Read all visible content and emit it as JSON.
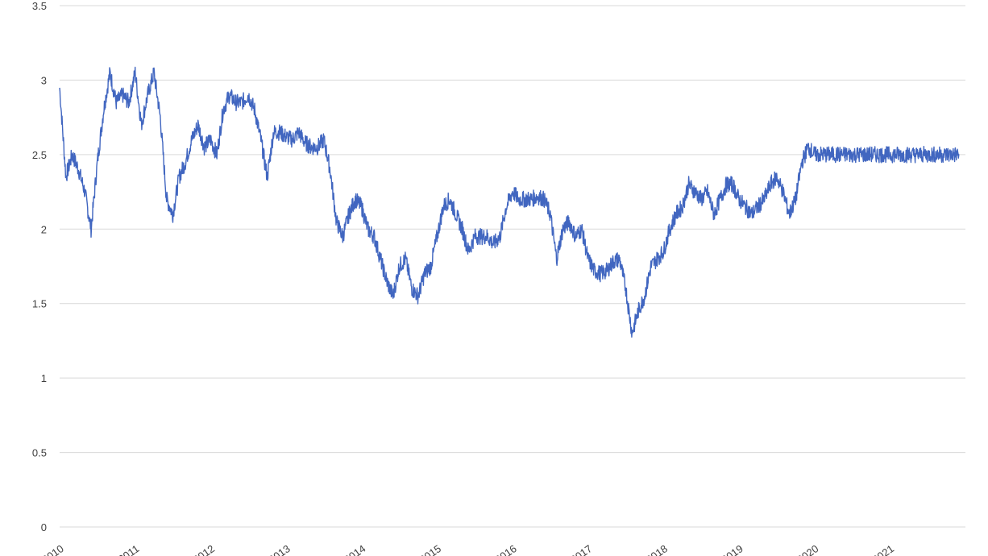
{
  "chart_data": {
    "type": "line",
    "title": "",
    "xlabel": "",
    "ylabel": "",
    "ylim": [
      0,
      3.5
    ],
    "xlim": [
      "2010-01",
      "2022-01"
    ],
    "grid": "horizontal",
    "legend": "none",
    "color": "#4166c0",
    "y_ticks": [
      "0",
      "0.5",
      "1",
      "1.5",
      "2",
      "2.5",
      "3",
      "3.5"
    ],
    "x_ticks": [
      "2010",
      "2011",
      "2012",
      "2013",
      "2014",
      "2015",
      "2016",
      "2017",
      "2018",
      "2019",
      "2020",
      "2021"
    ],
    "x": [
      "2010-01",
      "2010-02",
      "2010-03",
      "2010-04",
      "2010-05",
      "2010-06",
      "2010-07",
      "2010-08",
      "2010-09",
      "2010-10",
      "2010-11",
      "2010-12",
      "2011-01",
      "2011-02",
      "2011-03",
      "2011-04",
      "2011-05",
      "2011-06",
      "2011-07",
      "2011-08",
      "2011-09",
      "2011-10",
      "2011-11",
      "2011-12",
      "2012-01",
      "2012-02",
      "2012-03",
      "2012-04",
      "2012-05",
      "2012-06",
      "2012-07",
      "2012-08",
      "2012-09",
      "2012-10",
      "2012-11",
      "2012-12",
      "2013-01",
      "2013-02",
      "2013-03",
      "2013-04",
      "2013-05",
      "2013-06",
      "2013-07",
      "2013-08",
      "2013-09",
      "2013-10",
      "2013-11",
      "2013-12",
      "2014-01",
      "2014-02",
      "2014-03",
      "2014-04",
      "2014-05",
      "2014-06",
      "2014-07",
      "2014-08",
      "2014-09",
      "2014-10",
      "2014-11",
      "2014-12",
      "2015-01",
      "2015-02",
      "2015-03",
      "2015-04",
      "2015-05",
      "2015-06",
      "2015-07",
      "2015-08",
      "2015-09",
      "2015-10",
      "2015-11",
      "2015-12",
      "2016-01",
      "2016-02",
      "2016-03",
      "2016-04",
      "2016-05",
      "2016-06",
      "2016-07",
      "2016-08",
      "2016-09",
      "2016-10",
      "2016-11",
      "2016-12",
      "2017-01",
      "2017-02",
      "2017-03",
      "2017-04",
      "2017-05",
      "2017-06",
      "2017-07",
      "2017-08",
      "2017-09",
      "2017-10",
      "2017-11",
      "2017-12",
      "2018-01",
      "2018-02",
      "2018-03",
      "2018-04",
      "2018-05",
      "2018-06",
      "2018-07",
      "2018-08",
      "2018-09",
      "2018-10",
      "2018-11",
      "2018-12",
      "2019-01",
      "2019-02",
      "2019-03",
      "2019-04",
      "2019-05",
      "2019-06",
      "2019-07",
      "2019-08",
      "2019-09",
      "2019-10",
      "2019-11",
      "2019-12",
      "2020-01",
      "2020-02",
      "2020-03",
      "2020-04",
      "2020-05",
      "2020-06",
      "2020-07",
      "2020-08",
      "2020-09",
      "2020-10",
      "2020-11",
      "2020-12",
      "2021-01",
      "2021-02",
      "2021-03",
      "2021-04",
      "2021-05",
      "2021-06",
      "2021-07",
      "2021-08",
      "2021-09",
      "2021-10",
      "2021-11",
      "2021-12"
    ],
    "series": [
      {
        "values": [
          2.95,
          2.35,
          2.5,
          2.4,
          2.25,
          2.0,
          2.45,
          2.8,
          3.05,
          2.85,
          2.9,
          2.85,
          3.05,
          2.7,
          2.9,
          3.05,
          2.75,
          2.2,
          2.1,
          2.35,
          2.45,
          2.6,
          2.7,
          2.55,
          2.6,
          2.5,
          2.8,
          2.9,
          2.85,
          2.85,
          2.9,
          2.8,
          2.6,
          2.35,
          2.65,
          2.65,
          2.62,
          2.6,
          2.65,
          2.58,
          2.55,
          2.55,
          2.6,
          2.4,
          2.05,
          1.95,
          2.1,
          2.2,
          2.15,
          2.0,
          1.95,
          1.8,
          1.65,
          1.55,
          1.75,
          1.8,
          1.6,
          1.55,
          1.7,
          1.75,
          1.95,
          2.15,
          2.2,
          2.1,
          2.0,
          1.85,
          1.95,
          1.95,
          1.95,
          1.9,
          1.95,
          2.15,
          2.25,
          2.2,
          2.2,
          2.2,
          2.22,
          2.2,
          2.1,
          1.8,
          2.0,
          2.05,
          1.95,
          2.0,
          1.8,
          1.72,
          1.7,
          1.72,
          1.78,
          1.8,
          1.6,
          1.3,
          1.45,
          1.55,
          1.75,
          1.8,
          1.85,
          2.0,
          2.1,
          2.15,
          2.3,
          2.25,
          2.2,
          2.25,
          2.1,
          2.2,
          2.3,
          2.3,
          2.2,
          2.15,
          2.1,
          2.15,
          2.2,
          2.3,
          2.35,
          2.25,
          2.1,
          2.2,
          2.45,
          2.55,
          2.5,
          2.5,
          2.5,
          2.5,
          2.5,
          2.5,
          2.5,
          2.5,
          2.5,
          2.5,
          2.5,
          2.5,
          2.5,
          2.5,
          2.5,
          2.5,
          2.5,
          2.5,
          2.5,
          2.5,
          2.5,
          2.5,
          2.5,
          2.5
        ]
      }
    ]
  }
}
